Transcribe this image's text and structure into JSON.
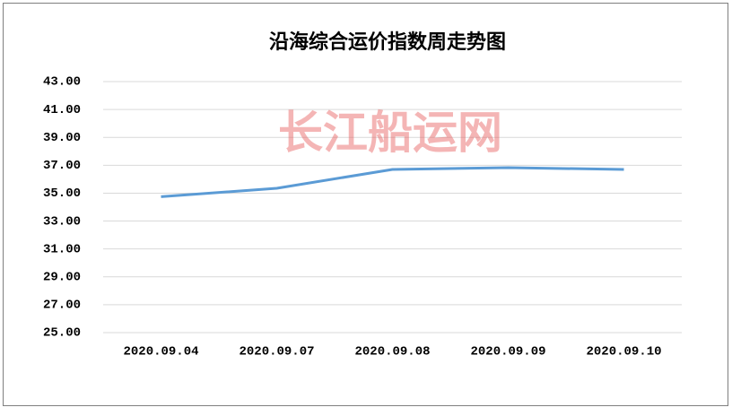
{
  "chart_data": {
    "type": "line",
    "title": "沿海综合运价指数周走势图",
    "watermark": "长江船运网",
    "categories": [
      "2020.09.04",
      "2020.09.07",
      "2020.09.08",
      "2020.09.09",
      "2020.09.10"
    ],
    "values": [
      34.75,
      35.35,
      36.7,
      36.83,
      36.7
    ],
    "color": "#5b9bd5",
    "ylim": [
      25,
      43
    ],
    "yticks": [
      {
        "value": 25,
        "label": "25.00"
      },
      {
        "value": 27,
        "label": "27.00"
      },
      {
        "value": 29,
        "label": "29.00"
      },
      {
        "value": 31,
        "label": "31.00"
      },
      {
        "value": 33,
        "label": "33.00"
      },
      {
        "value": 35,
        "label": "35.00"
      },
      {
        "value": 37,
        "label": "37.00"
      },
      {
        "value": 39,
        "label": "39.00"
      },
      {
        "value": 41,
        "label": "41.00"
      },
      {
        "value": 43,
        "label": "43.00"
      }
    ],
    "grid": true
  }
}
